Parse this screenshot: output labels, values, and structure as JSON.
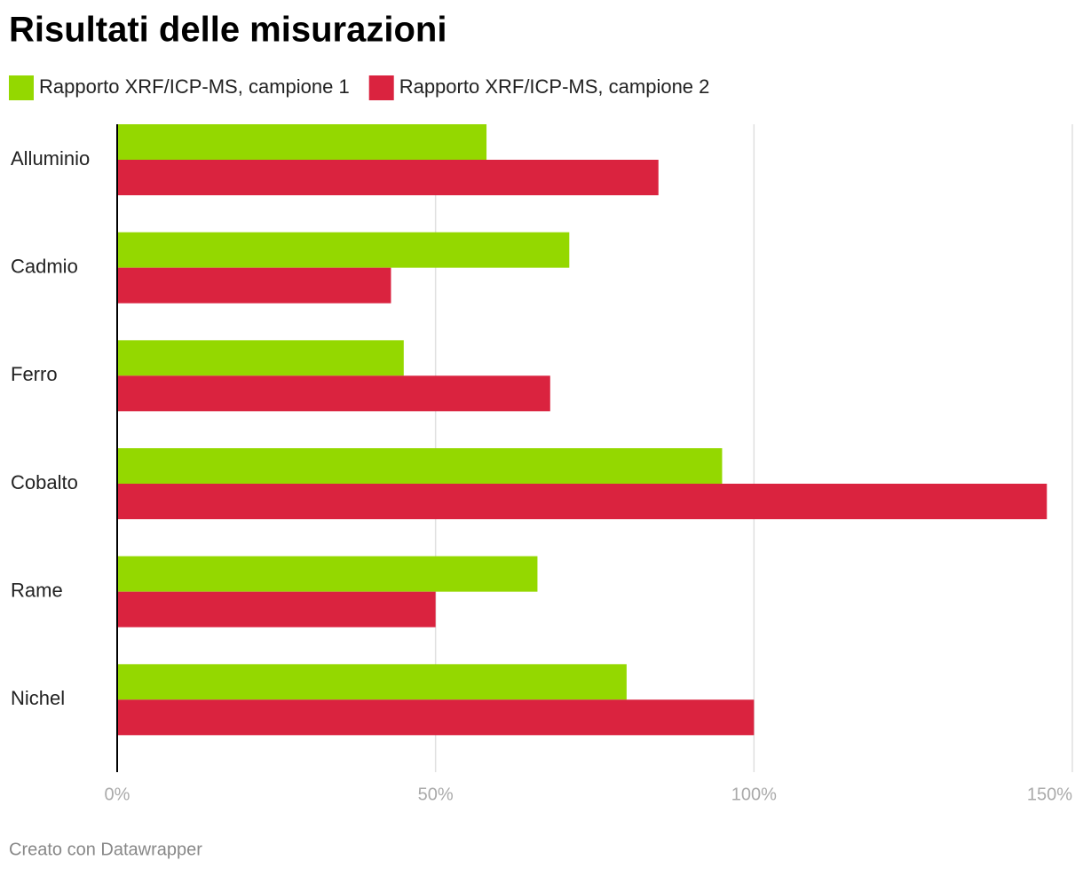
{
  "chart_data": {
    "type": "bar",
    "orientation": "horizontal",
    "title": "Risultati delle misurazioni",
    "categories": [
      "Alluminio",
      "Cadmio",
      "Ferro",
      "Cobalto",
      "Rame",
      "Nichel"
    ],
    "series": [
      {
        "name": "Rapporto XRF/ICP-MS, campione 1",
        "color": "#94d800",
        "values": [
          58,
          71,
          45,
          95,
          66,
          80
        ]
      },
      {
        "name": "Rapporto XRF/ICP-MS, campione 2",
        "color": "#da233f",
        "values": [
          85,
          43,
          68,
          146,
          50,
          100
        ]
      }
    ],
    "xlim": [
      0,
      150
    ],
    "xticks": [
      {
        "value": 0,
        "label": "0%"
      },
      {
        "value": 50,
        "label": "50%"
      },
      {
        "value": 100,
        "label": "100%"
      },
      {
        "value": 150,
        "label": "150%"
      }
    ],
    "grid": true,
    "footer": "Creato con Datawrapper"
  }
}
